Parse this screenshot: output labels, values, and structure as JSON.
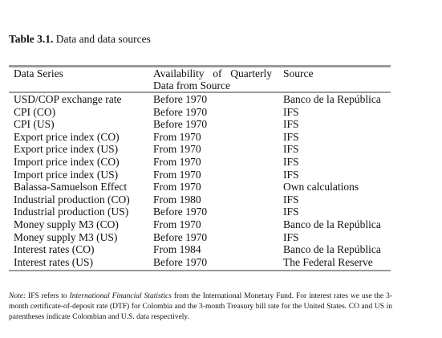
{
  "caption": {
    "label": "Table 3.1.",
    "text": " Data and data sources"
  },
  "headers": {
    "series": "Data Series",
    "availability_line1": [
      "Availability",
      "of",
      "Quarterly"
    ],
    "availability_line2": "Data from Source",
    "source": "Source"
  },
  "rows": [
    {
      "series": "USD/COP exchange rate",
      "availability": "Before 1970",
      "source": "Banco de la República"
    },
    {
      "series": "CPI (CO)",
      "availability": "Before 1970",
      "source": "IFS"
    },
    {
      "series": "CPI (US)",
      "availability": "Before 1970",
      "source": "IFS"
    },
    {
      "series": "Export price index (CO)",
      "availability": "From 1970",
      "source": "IFS"
    },
    {
      "series": "Export price index (US)",
      "availability": "From 1970",
      "source": "IFS"
    },
    {
      "series": "Import price index (CO)",
      "availability": "From 1970",
      "source": "IFS"
    },
    {
      "series": "Import price index (US)",
      "availability": "From 1970",
      "source": "IFS"
    },
    {
      "series": "Balassa-Samuelson Effect",
      "availability": "From 1970",
      "source": "Own calculations"
    },
    {
      "series": "Industrial production (CO)",
      "availability": "From 1980",
      "source": "IFS"
    },
    {
      "series": "Industrial production (US)",
      "availability": "Before 1970",
      "source": "IFS"
    },
    {
      "series": "Money supply M3 (CO)",
      "availability": "From 1970",
      "source": "Banco de la República"
    },
    {
      "series": "Money supply M3 (US)",
      "availability": "Before 1970",
      "source": "IFS"
    },
    {
      "series": "Interest rates (CO)",
      "availability": "From 1984",
      "source": "Banco de la República"
    },
    {
      "series": "Interest rates (US)",
      "availability": "Before 1970",
      "source": "The Federal Reserve"
    }
  ],
  "note": {
    "label": "Note:",
    "part1": " IFS refers to ",
    "emph": "International Financial Statistics",
    "part2": " from the International Monetary Fund. For interest rates we use the 3-month certificate-of-deposit rate (DTF) for Colombia and the 3-month Treasury bill rate for the United States. CO and US in parentheses indicate Colombian and U.S. data respectively."
  }
}
